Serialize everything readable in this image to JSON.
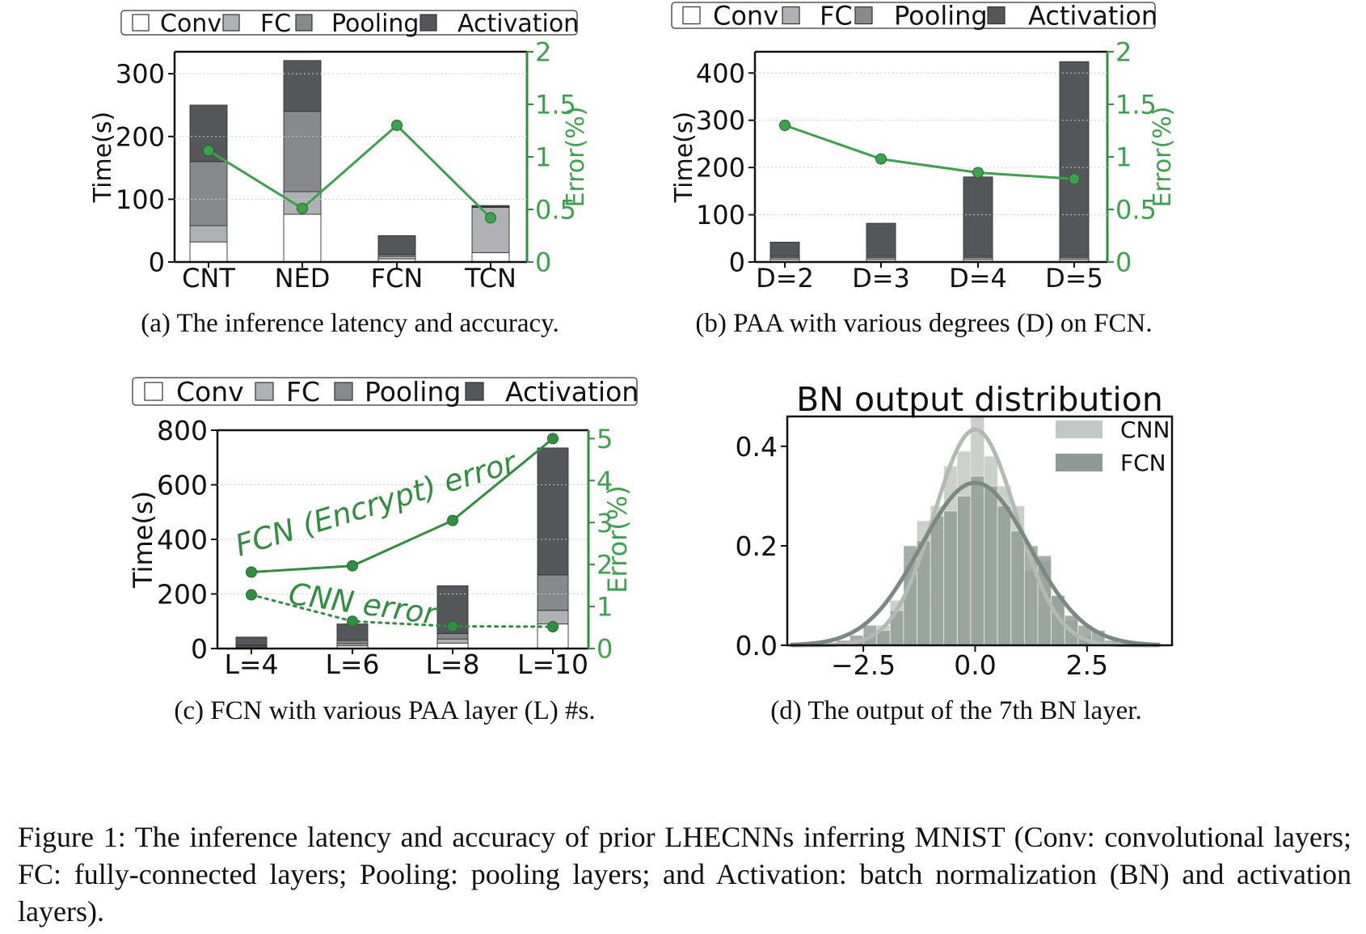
{
  "colors": {
    "Conv": "#ffffff",
    "FC": "#b0b1b4",
    "Pooling": "#88898c",
    "Activation": "#55565a",
    "error_line": "#3aa34b",
    "error_axis": "#2f8f3f",
    "cnn_hist": "#c2c8c4",
    "fcn_hist": "#8e9a95"
  },
  "legend_labels": [
    "Conv",
    "FC",
    "Pooling",
    "Activation"
  ],
  "chart_data": [
    {
      "type": "bar",
      "caption": "(a) The inference latency and accuracy.",
      "stacked": true,
      "categories": [
        "CNT",
        "NED",
        "FCN",
        "TCN"
      ],
      "ylabel": "Time(s)",
      "ylim": [
        0,
        335
      ],
      "yticks": [
        0,
        100,
        200,
        300
      ],
      "series": [
        {
          "name": "Conv",
          "values": [
            32,
            76,
            5,
            15
          ]
        },
        {
          "name": "FC",
          "values": [
            26,
            36,
            4,
            72
          ]
        },
        {
          "name": "Pooling",
          "values": [
            102,
            128,
            3,
            1
          ]
        },
        {
          "name": "Activation",
          "values": [
            90,
            81,
            30,
            2
          ]
        }
      ],
      "y2label": "Error(%)",
      "y2lim": [
        0,
        2
      ],
      "y2ticks": [
        "0",
        "0.5",
        "1",
        "1.5",
        "2"
      ],
      "y2tick_values": [
        0,
        0.5,
        1,
        1.5,
        2
      ],
      "line_series": [
        {
          "name": "Error",
          "values": [
            1.06,
            0.51,
            1.3,
            0.42
          ],
          "dashed": false
        }
      ],
      "legend": "top"
    },
    {
      "type": "bar",
      "caption": "(b) PAA with various degrees (D) on FCN.",
      "stacked": true,
      "categories": [
        "D=2",
        "D=3",
        "D=4",
        "D=5"
      ],
      "ylabel": "Time(s)",
      "ylim": [
        0,
        445
      ],
      "yticks": [
        0,
        100,
        200,
        300,
        400
      ],
      "series": [
        {
          "name": "Conv",
          "values": [
            5,
            5,
            5,
            5
          ]
        },
        {
          "name": "FC",
          "values": [
            4,
            4,
            4,
            4
          ]
        },
        {
          "name": "Pooling",
          "values": [
            3,
            3,
            3,
            3
          ]
        },
        {
          "name": "Activation",
          "values": [
            30,
            70,
            168,
            412
          ]
        }
      ],
      "y2label": "Error(%)",
      "y2lim": [
        0,
        2
      ],
      "y2ticks": [
        "0",
        "0.5",
        "1",
        "1.5",
        "2"
      ],
      "y2tick_values": [
        0,
        0.5,
        1,
        1.5,
        2
      ],
      "line_series": [
        {
          "name": "Error",
          "values": [
            1.3,
            0.98,
            0.85,
            0.79
          ],
          "dashed": false
        }
      ],
      "legend": "top"
    },
    {
      "type": "bar",
      "caption": "(c) FCN with various PAA layer (L) #s.",
      "stacked": true,
      "categories": [
        "L=4",
        "L=6",
        "L=8",
        "L=10"
      ],
      "ylabel": "Time(s)",
      "ylim": [
        0,
        800
      ],
      "yticks": [
        0,
        200,
        400,
        600,
        800
      ],
      "series": [
        {
          "name": "Conv",
          "values": [
            5,
            10,
            20,
            90
          ]
        },
        {
          "name": "FC",
          "values": [
            4,
            8,
            15,
            50
          ]
        },
        {
          "name": "Pooling",
          "values": [
            3,
            12,
            20,
            130
          ]
        },
        {
          "name": "Activation",
          "values": [
            30,
            60,
            175,
            465
          ]
        }
      ],
      "y2label": "Error(%)",
      "y2lim": [
        0,
        5.2
      ],
      "y2ticks": [
        "0",
        "1",
        "2",
        "3",
        "4",
        "5"
      ],
      "y2tick_values": [
        0,
        1,
        2,
        3,
        4,
        5
      ],
      "line_series": [
        {
          "name": "FCN (Encrypt) error",
          "values": [
            1.82,
            1.97,
            3.05,
            5.0
          ],
          "dashed": false
        },
        {
          "name": "CNN error",
          "values": [
            1.28,
            0.65,
            0.53,
            0.52
          ],
          "dashed": true
        }
      ],
      "annotations": [
        "FCN (Encrypt) error",
        "CNN error"
      ],
      "legend": "top"
    },
    {
      "type": "histogram",
      "caption": "(d) The output of the 7th BN layer.",
      "title": "BN output distribution",
      "xlim": [
        -4.2,
        4.4
      ],
      "ylim": [
        0,
        0.46
      ],
      "xticks": [
        "−2.5",
        "0.0",
        "2.5"
      ],
      "xtick_values": [
        -2.5,
        0,
        2.5
      ],
      "yticks": [
        "0.0",
        "0.2",
        "0.4"
      ],
      "ytick_values": [
        0,
        0.2,
        0.4
      ],
      "bin_edges": [
        -3.7,
        -3.4,
        -3.1,
        -2.8,
        -2.5,
        -2.2,
        -1.9,
        -1.6,
        -1.3,
        -1.0,
        -0.7,
        -0.4,
        -0.1,
        0.2,
        0.5,
        0.8,
        1.1,
        1.4,
        1.7,
        2.0,
        2.3,
        2.6,
        2.9,
        3.2,
        3.5
      ],
      "series": [
        {
          "name": "CNN",
          "density": [
            0,
            0,
            0.005,
            0.01,
            0.02,
            0.04,
            0.09,
            0.16,
            0.25,
            0.28,
            0.36,
            0.39,
            0.46,
            0.38,
            0.32,
            0.28,
            0.15,
            0.17,
            0.1,
            0.05,
            0.02,
            0.01,
            0.005,
            0
          ]
        },
        {
          "name": "FCN",
          "density": [
            0.002,
            0.005,
            0.01,
            0.02,
            0.04,
            0.03,
            0.07,
            0.2,
            0.21,
            0.26,
            0.27,
            0.3,
            0.34,
            0.32,
            0.28,
            0.23,
            0.2,
            0.18,
            0.1,
            0.06,
            0.04,
            0.03,
            0.01,
            0.005
          ]
        }
      ],
      "kde": [
        {
          "name": "CNN",
          "sigma": 0.92
        },
        {
          "name": "FCN",
          "sigma": 1.22
        }
      ],
      "legend": "top-right"
    }
  ],
  "figure_caption": "Figure 1: The inference latency and accuracy of prior LHECNNs inferring MNIST (Conv: convolutional layers; FC: fully-connected layers; Pooling: pooling layers; and Activation: batch normalization (BN) and activation layers)."
}
